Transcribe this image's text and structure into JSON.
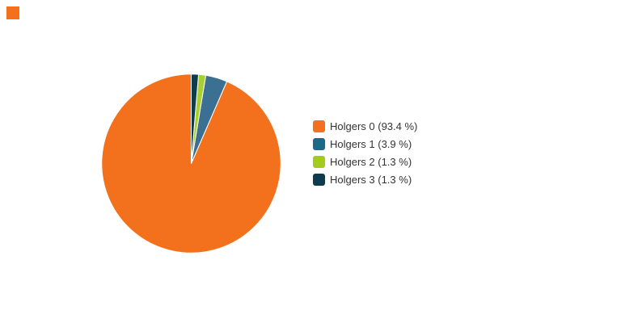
{
  "page": {
    "background_color": "#ffffff"
  },
  "top_left_marker": {
    "color": "#F3711D"
  },
  "chart_data": {
    "type": "pie",
    "title": "",
    "legend_position": "right",
    "start_angle_deg": 0,
    "direction": "counterclockwise",
    "slice_border_color": "#ffffff",
    "slices": [
      {
        "name": "Holgers 0",
        "label": "Holgers 0 (93.4 %)",
        "value_pct": 93.4,
        "slice_color": "#F3711D",
        "legend_color": "#F3711D"
      },
      {
        "name": "Holgers 1",
        "label": "Holgers 1 (3.9 %)",
        "value_pct": 3.9,
        "slice_color": "#3C7093",
        "legend_color": "#1A6B88"
      },
      {
        "name": "Holgers 2",
        "label": "Holgers 2 (1.3 %)",
        "value_pct": 1.3,
        "slice_color": "#A9CE31",
        "legend_color": "#A2CB1E"
      },
      {
        "name": "Holgers 3",
        "label": "Holgers 3 (1.3 %)",
        "value_pct": 1.3,
        "slice_color": "#0E3C4E",
        "legend_color": "#0E3C4E"
      }
    ]
  }
}
